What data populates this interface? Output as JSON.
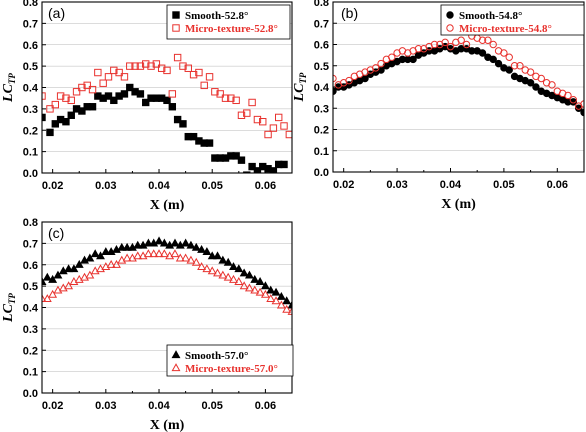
{
  "chart_data": [
    {
      "type": "scatter",
      "panel_label": "(a)",
      "xlabel": "X (m)",
      "ylabel": "LC",
      "ylabel_sub": "TP",
      "xlim": [
        0.018,
        0.065
      ],
      "ylim": [
        0,
        0.8
      ],
      "xticks": [
        "0.02",
        "0.03",
        "0.04",
        "0.05",
        "0.06"
      ],
      "yticks": [
        "0.0",
        "0.1",
        "0.2",
        "0.3",
        "0.4",
        "0.5",
        "0.6",
        "0.7",
        "0.8"
      ],
      "grid": "horizontal",
      "legend_position": "top-right",
      "series": [
        {
          "name": "Smooth-52.8°",
          "marker": "square-filled",
          "color": "#000000",
          "x": [
            0.018,
            0.0195,
            0.0205,
            0.0215,
            0.0225,
            0.0235,
            0.0245,
            0.0255,
            0.0265,
            0.0275,
            0.0285,
            0.0295,
            0.0305,
            0.0315,
            0.0325,
            0.0335,
            0.0345,
            0.0355,
            0.0365,
            0.0375,
            0.0385,
            0.0395,
            0.0405,
            0.0415,
            0.0425,
            0.0435,
            0.0445,
            0.0455,
            0.0465,
            0.0475,
            0.0485,
            0.0495,
            0.0505,
            0.0515,
            0.0525,
            0.0535,
            0.0545,
            0.0555,
            0.0565,
            0.0575,
            0.0585,
            0.0595,
            0.0605,
            0.0615,
            0.0625,
            0.0635
          ],
          "y": [
            0.26,
            0.19,
            0.23,
            0.25,
            0.24,
            0.27,
            0.3,
            0.29,
            0.31,
            0.31,
            0.36,
            0.35,
            0.36,
            0.34,
            0.36,
            0.37,
            0.4,
            0.38,
            0.37,
            0.33,
            0.35,
            0.35,
            0.35,
            0.34,
            0.31,
            0.25,
            0.23,
            0.17,
            0.17,
            0.15,
            0.14,
            0.14,
            0.07,
            0.07,
            0.07,
            0.08,
            0.08,
            0.06,
            -0.01,
            0.03,
            0.01,
            0.03,
            0.02,
            0.01,
            0.04,
            0.04
          ]
        },
        {
          "name": "Micro-texture-52.8°",
          "marker": "square-open",
          "color": "#e8322e",
          "x": [
            0.018,
            0.0195,
            0.0205,
            0.0215,
            0.0225,
            0.0235,
            0.0245,
            0.0255,
            0.0265,
            0.0275,
            0.0285,
            0.0295,
            0.0305,
            0.0315,
            0.0325,
            0.0335,
            0.0345,
            0.0355,
            0.0365,
            0.0375,
            0.0385,
            0.0395,
            0.0405,
            0.0415,
            0.0425,
            0.0435,
            0.0445,
            0.0455,
            0.0465,
            0.0475,
            0.0485,
            0.0495,
            0.0505,
            0.0515,
            0.0525,
            0.0535,
            0.0545,
            0.0555,
            0.0565,
            0.0575,
            0.0585,
            0.0595,
            0.0605,
            0.0615,
            0.0625,
            0.0635,
            0.0645
          ],
          "y": [
            0.36,
            0.3,
            0.32,
            0.36,
            0.35,
            0.34,
            0.38,
            0.4,
            0.41,
            0.39,
            0.47,
            0.42,
            0.45,
            0.48,
            0.47,
            0.45,
            0.5,
            0.5,
            0.5,
            0.51,
            0.5,
            0.51,
            0.49,
            0.48,
            0.37,
            0.54,
            0.5,
            0.49,
            0.46,
            0.47,
            0.41,
            0.45,
            0.38,
            0.37,
            0.35,
            0.35,
            0.34,
            0.27,
            0.28,
            0.33,
            0.25,
            0.24,
            0.18,
            0.21,
            0.26,
            0.22,
            0.18
          ]
        }
      ]
    },
    {
      "type": "scatter",
      "panel_label": "(b)",
      "xlabel": "X (m)",
      "ylabel": "LC",
      "ylabel_sub": "TP",
      "xlim": [
        0.018,
        0.065
      ],
      "ylim": [
        0,
        0.8
      ],
      "xticks": [
        "0.02",
        "0.03",
        "0.04",
        "0.05",
        "0.06"
      ],
      "yticks": [
        "0.0",
        "0.1",
        "0.2",
        "0.3",
        "0.4",
        "0.5",
        "0.6",
        "0.7",
        "0.8"
      ],
      "grid": "horizontal",
      "legend_position": "top-right",
      "series": [
        {
          "name": "Smooth-54.8°",
          "marker": "circle-filled",
          "color": "#000000",
          "x": [
            0.018,
            0.019,
            0.02,
            0.021,
            0.022,
            0.023,
            0.024,
            0.025,
            0.026,
            0.027,
            0.028,
            0.029,
            0.03,
            0.031,
            0.032,
            0.033,
            0.034,
            0.035,
            0.036,
            0.037,
            0.038,
            0.039,
            0.04,
            0.041,
            0.042,
            0.043,
            0.044,
            0.045,
            0.046,
            0.047,
            0.048,
            0.049,
            0.05,
            0.051,
            0.052,
            0.053,
            0.054,
            0.055,
            0.056,
            0.057,
            0.058,
            0.059,
            0.06,
            0.061,
            0.062,
            0.063,
            0.064,
            0.065
          ],
          "y": [
            0.38,
            0.4,
            0.4,
            0.41,
            0.42,
            0.43,
            0.44,
            0.46,
            0.47,
            0.48,
            0.5,
            0.51,
            0.52,
            0.53,
            0.53,
            0.53,
            0.55,
            0.56,
            0.57,
            0.57,
            0.58,
            0.59,
            0.58,
            0.57,
            0.58,
            0.58,
            0.57,
            0.57,
            0.56,
            0.54,
            0.53,
            0.51,
            0.49,
            0.48,
            0.45,
            0.44,
            0.43,
            0.42,
            0.4,
            0.38,
            0.37,
            0.36,
            0.35,
            0.34,
            0.33,
            0.33,
            0.3,
            0.28
          ]
        },
        {
          "name": "Micro-texture-54.8°",
          "marker": "circle-open",
          "color": "#e8322e",
          "x": [
            0.018,
            0.019,
            0.02,
            0.021,
            0.022,
            0.023,
            0.024,
            0.025,
            0.026,
            0.027,
            0.028,
            0.029,
            0.03,
            0.031,
            0.032,
            0.033,
            0.034,
            0.035,
            0.036,
            0.037,
            0.038,
            0.039,
            0.04,
            0.041,
            0.042,
            0.043,
            0.044,
            0.045,
            0.046,
            0.047,
            0.048,
            0.049,
            0.05,
            0.051,
            0.052,
            0.053,
            0.054,
            0.055,
            0.056,
            0.057,
            0.058,
            0.059,
            0.06,
            0.061,
            0.062,
            0.063,
            0.064,
            0.065
          ],
          "y": [
            0.44,
            0.41,
            0.42,
            0.43,
            0.45,
            0.46,
            0.47,
            0.48,
            0.49,
            0.51,
            0.53,
            0.54,
            0.56,
            0.57,
            0.56,
            0.57,
            0.58,
            0.58,
            0.59,
            0.6,
            0.6,
            0.61,
            0.59,
            0.61,
            0.62,
            0.6,
            0.64,
            0.63,
            0.62,
            0.62,
            0.6,
            0.57,
            0.56,
            0.54,
            0.5,
            0.5,
            0.48,
            0.47,
            0.45,
            0.44,
            0.42,
            0.41,
            0.38,
            0.37,
            0.36,
            0.34,
            0.31,
            0.32
          ]
        }
      ]
    },
    {
      "type": "scatter",
      "panel_label": "(c)",
      "xlabel": "X (m)",
      "ylabel": "LC",
      "ylabel_sub": "TP",
      "xlim": [
        0.018,
        0.065
      ],
      "ylim": [
        0,
        0.8
      ],
      "xticks": [
        "0.02",
        "0.03",
        "0.04",
        "0.05",
        "0.06"
      ],
      "yticks": [
        "0.0",
        "0.1",
        "0.2",
        "0.3",
        "0.4",
        "0.5",
        "0.6",
        "0.7",
        "0.8"
      ],
      "grid": "horizontal",
      "legend_position": "bottom-right",
      "series": [
        {
          "name": "Smooth-57.0°",
          "marker": "triangle-filled",
          "color": "#000000",
          "x": [
            0.018,
            0.019,
            0.02,
            0.021,
            0.022,
            0.023,
            0.024,
            0.025,
            0.026,
            0.027,
            0.028,
            0.029,
            0.03,
            0.031,
            0.032,
            0.033,
            0.034,
            0.035,
            0.036,
            0.037,
            0.038,
            0.039,
            0.04,
            0.041,
            0.042,
            0.043,
            0.044,
            0.045,
            0.046,
            0.047,
            0.048,
            0.049,
            0.05,
            0.051,
            0.052,
            0.053,
            0.054,
            0.055,
            0.056,
            0.057,
            0.058,
            0.059,
            0.06,
            0.061,
            0.062,
            0.063,
            0.064,
            0.065
          ],
          "y": [
            0.52,
            0.54,
            0.53,
            0.55,
            0.57,
            0.58,
            0.58,
            0.6,
            0.62,
            0.63,
            0.65,
            0.64,
            0.66,
            0.66,
            0.67,
            0.68,
            0.68,
            0.68,
            0.69,
            0.69,
            0.7,
            0.7,
            0.71,
            0.7,
            0.69,
            0.7,
            0.69,
            0.7,
            0.69,
            0.68,
            0.67,
            0.66,
            0.64,
            0.64,
            0.62,
            0.61,
            0.59,
            0.58,
            0.56,
            0.55,
            0.53,
            0.52,
            0.5,
            0.48,
            0.47,
            0.45,
            0.43,
            0.41
          ]
        },
        {
          "name": "Micro-texture-57.0°",
          "marker": "triangle-open",
          "color": "#e8322e",
          "x": [
            0.018,
            0.019,
            0.02,
            0.021,
            0.022,
            0.023,
            0.024,
            0.025,
            0.026,
            0.027,
            0.028,
            0.029,
            0.03,
            0.031,
            0.032,
            0.033,
            0.034,
            0.035,
            0.036,
            0.037,
            0.038,
            0.039,
            0.04,
            0.041,
            0.042,
            0.043,
            0.044,
            0.045,
            0.046,
            0.047,
            0.048,
            0.049,
            0.05,
            0.051,
            0.052,
            0.053,
            0.054,
            0.055,
            0.056,
            0.057,
            0.058,
            0.059,
            0.06,
            0.061,
            0.062,
            0.063,
            0.064,
            0.065
          ],
          "y": [
            0.44,
            0.44,
            0.46,
            0.48,
            0.49,
            0.5,
            0.52,
            0.53,
            0.54,
            0.55,
            0.57,
            0.58,
            0.59,
            0.6,
            0.6,
            0.62,
            0.63,
            0.63,
            0.64,
            0.64,
            0.65,
            0.65,
            0.65,
            0.65,
            0.64,
            0.65,
            0.63,
            0.63,
            0.62,
            0.61,
            0.59,
            0.58,
            0.57,
            0.56,
            0.55,
            0.54,
            0.53,
            0.52,
            0.5,
            0.49,
            0.48,
            0.47,
            0.46,
            0.44,
            0.43,
            0.41,
            0.39,
            0.38
          ]
        }
      ]
    }
  ]
}
